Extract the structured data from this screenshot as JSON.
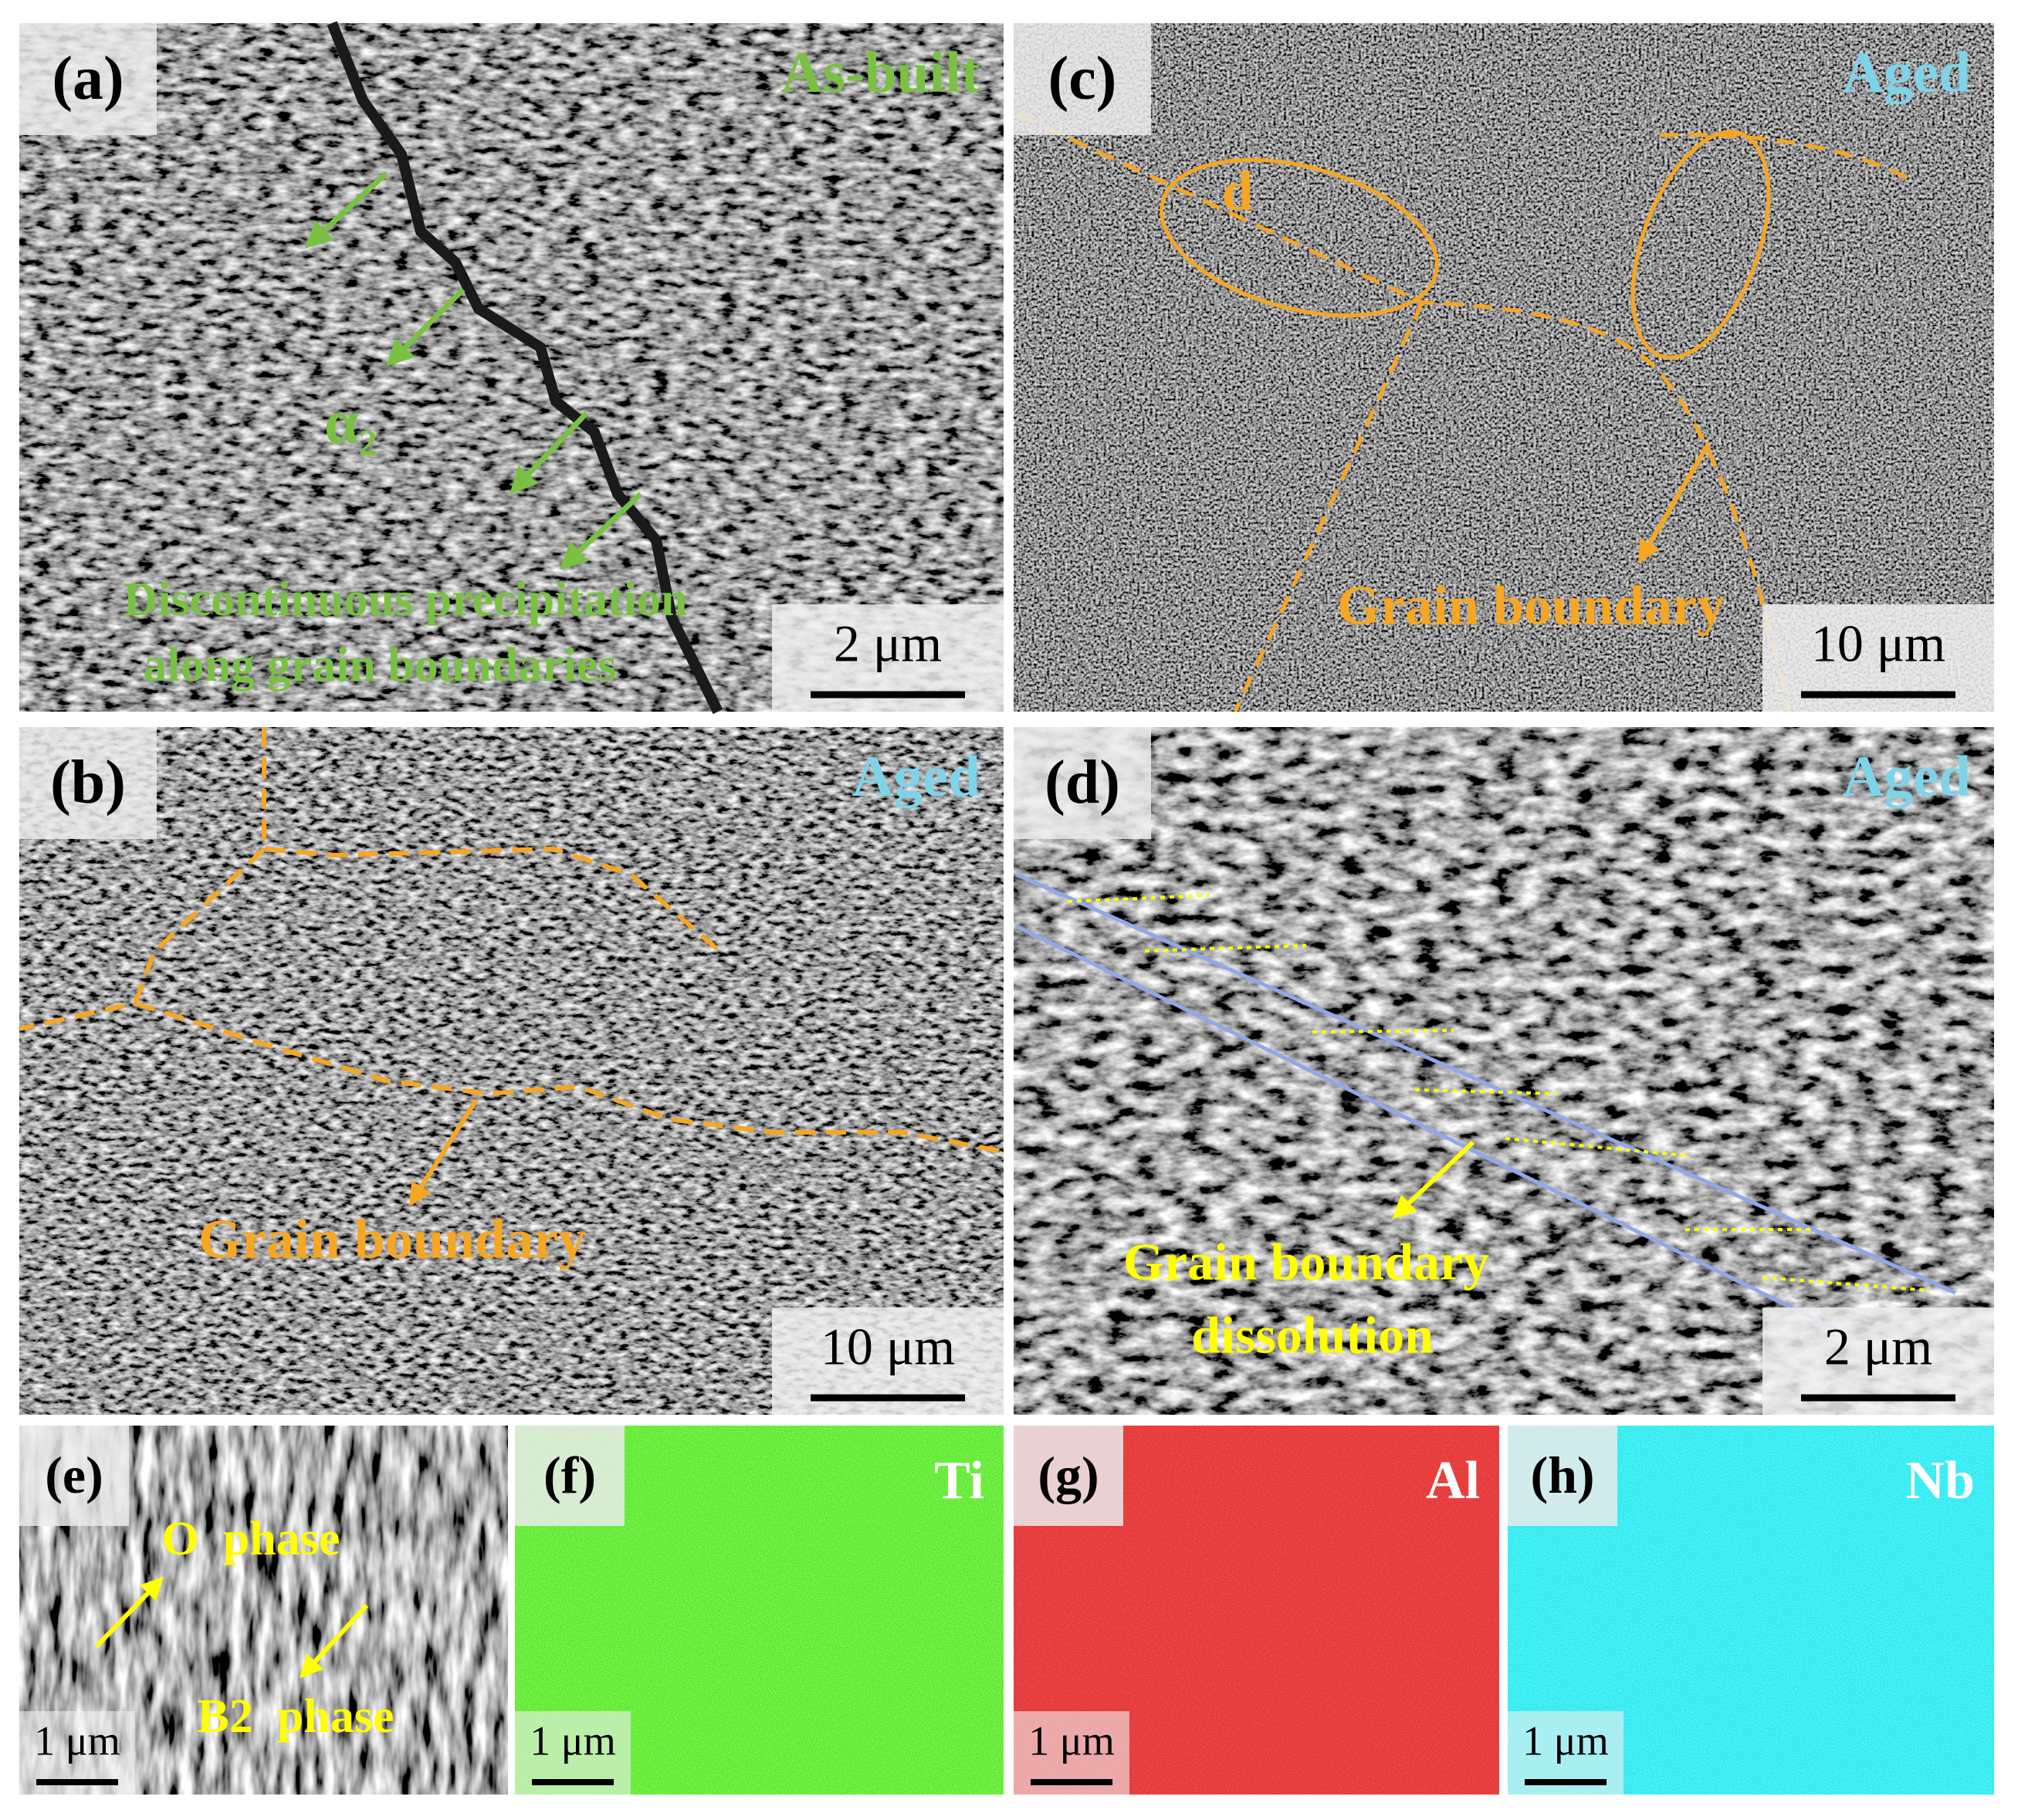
{
  "panels": [
    {
      "label": "(a)",
      "tag": "As-built",
      "scale_bar": "2 μm",
      "annotations": [
        "α₂",
        "Discontinuous precipitation",
        "along grain boundaries"
      ]
    },
    {
      "label": "(b)",
      "tag": "Aged",
      "scale_bar": "10 μm",
      "annotations": [
        "Grain boundary"
      ]
    },
    {
      "label": "(c)",
      "tag": "Aged",
      "scale_bar": "10 μm",
      "annotations": [
        "d",
        "Grain boundary"
      ]
    },
    {
      "label": "(d)",
      "tag": "Aged",
      "scale_bar": "2 μm",
      "annotations": [
        "Grain boundary",
        "dissolution"
      ]
    },
    {
      "label": "(e)",
      "scale_bar": "1 μm",
      "annotations": [
        "O  phase",
        "B2  phase"
      ]
    },
    {
      "label": "(f)",
      "tag": "Ti",
      "scale_bar": "1 μm"
    },
    {
      "label": "(g)",
      "tag": "Al",
      "scale_bar": "1 μm"
    },
    {
      "label": "(h)",
      "tag": "Nb",
      "scale_bar": "1 μm"
    }
  ]
}
